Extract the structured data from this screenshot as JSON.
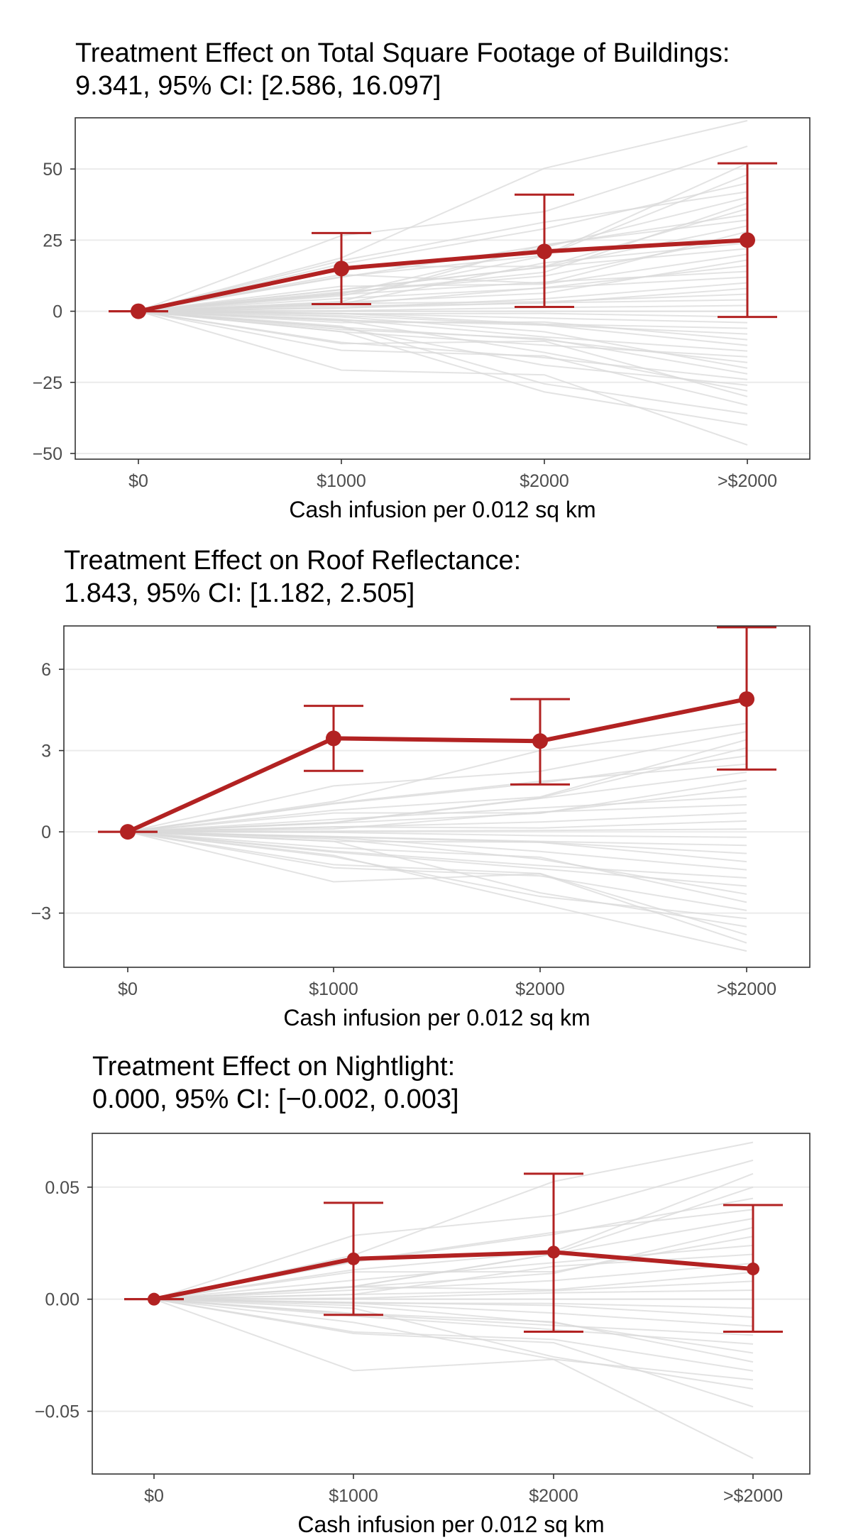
{
  "colors": {
    "effect": "#b22222",
    "placebo": "#d9d9d9",
    "grid": "#ebebeb",
    "panel_border": "#333333"
  },
  "chart_data": [
    {
      "type": "line",
      "title_line1": "Treatment Effect on Total Square Footage of Buildings:",
      "title_line2": "9.341, 95% CI: [2.586, 16.097]",
      "xlabel": "Cash infusion per 0.012 sq km",
      "ylabel": "",
      "categories": [
        "$0",
        "$1000",
        "$2000",
        ">$2000"
      ],
      "ylim": [
        -52,
        68
      ],
      "yticks": [
        -50,
        -25,
        0,
        25,
        50
      ],
      "ytick_labels": [
        "−50",
        "−25",
        "0",
        "25",
        "50"
      ],
      "grid": true,
      "series": [
        {
          "values": [
            0,
            15,
            21,
            25
          ],
          "ci_lower": [
            0,
            2.5,
            1.5,
            -2
          ],
          "ci_upper": [
            0,
            27.5,
            41,
            52
          ]
        }
      ],
      "placebo_endpoints": [
        67,
        58,
        52,
        48,
        45,
        42,
        40,
        38,
        36,
        34,
        32,
        30,
        28,
        26,
        24,
        22,
        20,
        18,
        16,
        14,
        12,
        10,
        8,
        6,
        4,
        2,
        0,
        -2,
        -4,
        -6,
        -8,
        -10,
        -12,
        -14,
        -16,
        -18,
        -20,
        -22,
        -24,
        -26,
        -28,
        -30,
        -33,
        -36,
        -40,
        -47
      ]
    },
    {
      "type": "line",
      "title_line1": "Treatment Effect on Roof Reflectance:",
      "title_line2": "1.843, 95% CI: [1.182, 2.505]",
      "xlabel": "Cash infusion per 0.012 sq km",
      "ylabel": "",
      "categories": [
        "$0",
        "$1000",
        "$2000",
        ">$2000"
      ],
      "ylim": [
        -5,
        7.6
      ],
      "yticks": [
        -3,
        0,
        3,
        6
      ],
      "ytick_labels": [
        "−3",
        "0",
        "3",
        "6"
      ],
      "grid": true,
      "series": [
        {
          "values": [
            0,
            3.45,
            3.35,
            4.9
          ],
          "ci_lower": [
            0,
            2.25,
            1.75,
            2.3
          ],
          "ci_upper": [
            0,
            4.65,
            4.9,
            7.55
          ]
        }
      ],
      "placebo_endpoints": [
        4.0,
        3.7,
        3.4,
        3.1,
        2.8,
        2.5,
        2.2,
        1.9,
        1.6,
        1.3,
        1.0,
        0.7,
        0.4,
        0.1,
        -0.2,
        -0.5,
        -0.8,
        -1.1,
        -1.4,
        -1.7,
        -2.0,
        -2.3,
        -2.6,
        -2.9,
        -3.2,
        -3.5,
        -3.8,
        -4.1,
        -4.4
      ]
    },
    {
      "type": "line",
      "title_line1": "Treatment Effect on Nightlight:",
      "title_line2": "0.000, 95% CI: [−0.002, 0.003]",
      "xlabel": "Cash infusion per 0.012 sq km",
      "ylabel": "",
      "categories": [
        "$0",
        "$1000",
        "$2000",
        ">$2000"
      ],
      "ylim": [
        -0.078,
        0.074
      ],
      "yticks": [
        -0.05,
        0,
        0.05
      ],
      "ytick_labels": [
        "−0.05",
        "0.00",
        "0.05"
      ],
      "grid": true,
      "series": [
        {
          "values": [
            0,
            0.018,
            0.021,
            0.0135
          ],
          "ci_lower": [
            0,
            -0.007,
            -0.0145,
            -0.0145
          ],
          "ci_upper": [
            0,
            0.043,
            0.056,
            0.042
          ]
        }
      ],
      "placebo_endpoints": [
        0.07,
        0.062,
        0.056,
        0.05,
        0.045,
        0.04,
        0.036,
        0.032,
        0.028,
        0.024,
        0.02,
        0.016,
        0.012,
        0.008,
        0.004,
        0.0,
        -0.004,
        -0.008,
        -0.012,
        -0.016,
        -0.02,
        -0.024,
        -0.028,
        -0.032,
        -0.036,
        -0.04,
        -0.048,
        -0.071
      ]
    }
  ]
}
